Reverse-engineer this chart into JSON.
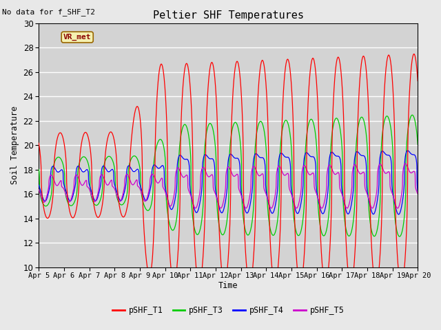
{
  "title": "Peltier SHF Temperatures",
  "subtitle": "No data for f_SHF_T2",
  "xlabel": "Time",
  "ylabel": "Soil Temperature",
  "ylim": [
    10,
    30
  ],
  "yticks": [
    10,
    12,
    14,
    16,
    18,
    20,
    22,
    24,
    26,
    28,
    30
  ],
  "xtick_labels": [
    "Apr 5",
    "Apr 6",
    "Apr 7",
    "Apr 8",
    "Apr 9",
    "Apr 10",
    "Apr 11",
    "Apr 12",
    "Apr 13",
    "Apr 14",
    "Apr 15",
    "Apr 16",
    "Apr 17",
    "Apr 18",
    "Apr 19",
    "Apr 20"
  ],
  "vr_met_label": "VR_met",
  "legend_entries": [
    "pSHF_T1",
    "pSHF_T3",
    "pSHF_T4",
    "pSHF_T5"
  ],
  "line_colors": [
    "red",
    "#00cc00",
    "blue",
    "#cc00cc"
  ],
  "bg_color": "#e8e8e8",
  "plot_bg_color": "#d3d3d3",
  "grid_color": "white",
  "font_family": "monospace"
}
